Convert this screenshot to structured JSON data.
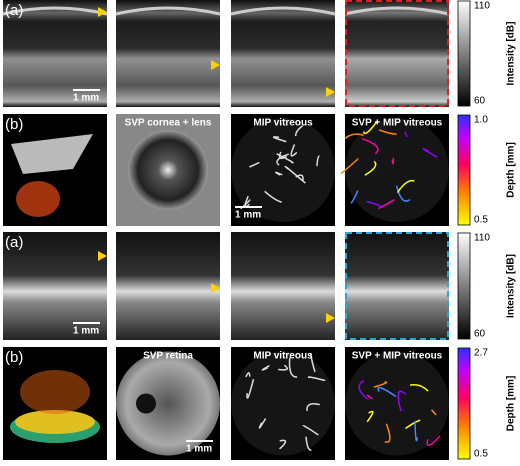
{
  "rows": [
    {
      "label": "(a)",
      "scale_bar": "1 mm",
      "colorbar": {
        "title": "Intensity [dB]",
        "max": "110",
        "min": "60"
      }
    },
    {
      "label": "(b)",
      "captions": [
        "SVP cornea + lens",
        "MIP vitreous",
        "SVP + MIP vitreous"
      ],
      "scale_bar": "1 mm",
      "colorbar": {
        "title": "Depth [mm]",
        "max": "1.0",
        "min": "0.5"
      }
    },
    {
      "label": "(a)",
      "scale_bar": "1 mm",
      "colorbar": {
        "title": "Intensity [dB]",
        "max": "110",
        "min": "60"
      }
    },
    {
      "label": "(b)",
      "captions": [
        "SVP retina",
        "MIP vitreous",
        "SVP + MIP vitreous"
      ],
      "scale_bar": "1 mm",
      "colorbar": {
        "title": "Depth [mm]",
        "max": "2.7",
        "min": "0.5"
      }
    }
  ]
}
